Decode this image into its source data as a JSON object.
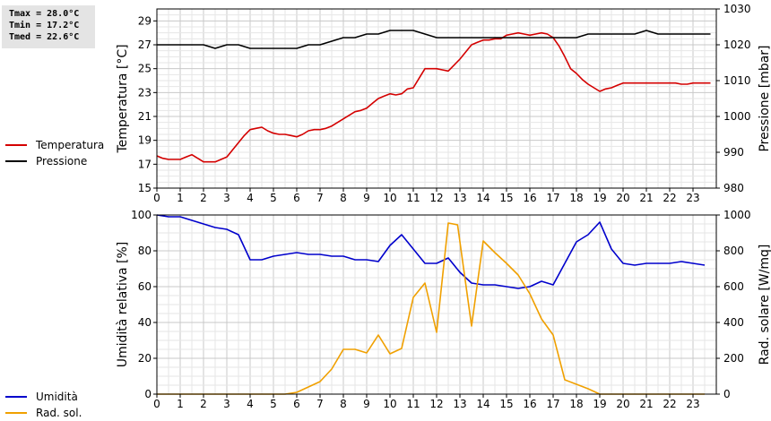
{
  "stats": [
    "Tmax = 28.0°C",
    "Tmin = 17.2°C",
    "Tmed = 22.6°C"
  ],
  "legend_top": [
    {
      "label": "Temperatura",
      "color": "#d40000"
    },
    {
      "label": "Pressione",
      "color": "#000000"
    }
  ],
  "legend_bottom": [
    {
      "label": "Umidità",
      "color": "#0000cc"
    },
    {
      "label": "Rad. sol.",
      "color": "#f0a000"
    }
  ],
  "chart_data": [
    {
      "type": "line",
      "x_ticks": [
        "0",
        "1",
        "2",
        "3",
        "4",
        "5",
        "6",
        "7",
        "8",
        "9",
        "10",
        "11",
        "12",
        "13",
        "14",
        "15",
        "16",
        "17",
        "18",
        "19",
        "20",
        "21",
        "22",
        "23"
      ],
      "xlim": [
        0,
        24
      ],
      "y_left": {
        "label": "Temperatura [°C]",
        "lim": [
          15,
          30
        ],
        "ticks": [
          "15",
          "17",
          "19",
          "21",
          "23",
          "25",
          "27",
          "29"
        ]
      },
      "y_right": {
        "label": "Pressione [mbar]",
        "lim": [
          980,
          1030
        ],
        "ticks": [
          "980",
          "990",
          "1000",
          "1010",
          "1020",
          "1030"
        ]
      },
      "grid": true,
      "series": [
        {
          "name": "Temperatura",
          "axis": "left",
          "color": "#d40000",
          "x": [
            0,
            0.25,
            0.5,
            0.75,
            1,
            1.25,
            1.5,
            1.75,
            2,
            2.25,
            2.5,
            2.75,
            3,
            3.25,
            3.5,
            3.75,
            4,
            4.25,
            4.5,
            4.75,
            5,
            5.25,
            5.5,
            5.75,
            6,
            6.25,
            6.5,
            6.75,
            7,
            7.25,
            7.5,
            7.75,
            8,
            8.25,
            8.5,
            8.75,
            9,
            9.25,
            9.5,
            9.75,
            10,
            10.25,
            10.5,
            10.75,
            11,
            11.25,
            11.5,
            11.75,
            12,
            12.25,
            12.5,
            12.75,
            13,
            13.25,
            13.5,
            13.75,
            14,
            14.25,
            14.5,
            14.75,
            15,
            15.25,
            15.5,
            15.75,
            16,
            16.25,
            16.5,
            16.75,
            17,
            17.25,
            17.5,
            17.75,
            18,
            18.25,
            18.5,
            18.75,
            19,
            19.25,
            19.5,
            19.75,
            20,
            20.25,
            20.5,
            20.75,
            21,
            21.25,
            21.5,
            21.75,
            22,
            22.25,
            22.5,
            22.75,
            23,
            23.25,
            23.5,
            23.75
          ],
          "y": [
            17.7,
            17.5,
            17.4,
            17.4,
            17.4,
            17.6,
            17.8,
            17.5,
            17.2,
            17.2,
            17.2,
            17.4,
            17.6,
            18.2,
            18.8,
            19.4,
            19.9,
            20.0,
            20.1,
            19.8,
            19.6,
            19.5,
            19.5,
            19.4,
            19.3,
            19.5,
            19.8,
            19.9,
            19.9,
            20.0,
            20.2,
            20.5,
            20.8,
            21.1,
            21.4,
            21.5,
            21.7,
            22.1,
            22.5,
            22.7,
            22.9,
            22.8,
            22.9,
            23.3,
            23.4,
            24.2,
            25.0,
            25.0,
            25.0,
            24.9,
            24.8,
            25.3,
            25.8,
            26.4,
            27.0,
            27.2,
            27.4,
            27.4,
            27.5,
            27.5,
            27.8,
            27.9,
            28.0,
            27.9,
            27.8,
            27.9,
            28.0,
            27.9,
            27.6,
            26.9,
            26.0,
            25.0,
            24.6,
            24.1,
            23.7,
            23.4,
            23.1,
            23.3,
            23.4,
            23.6,
            23.8,
            23.8,
            23.8,
            23.8,
            23.8,
            23.8,
            23.8,
            23.8,
            23.8,
            23.8,
            23.7,
            23.7,
            23.8,
            23.8,
            23.8,
            23.8
          ]
        },
        {
          "name": "Pressione",
          "axis": "right",
          "color": "#000000",
          "x": [
            0,
            1,
            2,
            2.5,
            3,
            3.5,
            4,
            5,
            6,
            6.5,
            7,
            7.5,
            8,
            8.5,
            9,
            9.5,
            10,
            10.5,
            11,
            11.5,
            12,
            13,
            14,
            15,
            16,
            17,
            18,
            18.5,
            19,
            20,
            20.5,
            21,
            21.5,
            22,
            23,
            23.75
          ],
          "y": [
            1020,
            1020,
            1020,
            1019,
            1020,
            1020,
            1019,
            1019,
            1019,
            1020,
            1020,
            1021,
            1022,
            1022,
            1023,
            1023,
            1024,
            1024,
            1024,
            1023,
            1022,
            1022,
            1022,
            1022,
            1022,
            1022,
            1022,
            1023,
            1023,
            1023,
            1023,
            1024,
            1023,
            1023,
            1023,
            1023
          ]
        }
      ]
    },
    {
      "type": "line",
      "x_ticks": [
        "0",
        "1",
        "2",
        "3",
        "4",
        "5",
        "6",
        "7",
        "8",
        "9",
        "10",
        "11",
        "12",
        "13",
        "14",
        "15",
        "16",
        "17",
        "18",
        "19",
        "20",
        "21",
        "22",
        "23"
      ],
      "xlim": [
        0,
        24
      ],
      "y_left": {
        "label": "Umidità relativa [%]",
        "lim": [
          0,
          100
        ],
        "ticks": [
          "0",
          "20",
          "40",
          "60",
          "80",
          "100"
        ]
      },
      "y_right": {
        "label": "Rad. solare [W/mq]",
        "lim": [
          0,
          1000
        ],
        "ticks": [
          "0",
          "200",
          "400",
          "600",
          "800",
          "1000"
        ]
      },
      "grid": true,
      "series": [
        {
          "name": "Umidità",
          "axis": "left",
          "color": "#0000cc",
          "x": [
            0,
            0.5,
            1,
            1.5,
            2,
            2.5,
            3,
            3.5,
            4,
            4.5,
            5,
            5.5,
            6,
            6.5,
            7,
            7.5,
            8,
            8.5,
            9,
            9.5,
            10,
            10.5,
            11,
            11.5,
            12,
            12.5,
            13,
            13.5,
            14,
            14.5,
            15,
            15.5,
            16,
            16.5,
            17,
            17.5,
            18,
            18.5,
            19,
            19.5,
            20,
            20.5,
            21,
            21.5,
            22,
            22.5,
            23,
            23.5
          ],
          "y": [
            100,
            99,
            99,
            97,
            95,
            93,
            92,
            89,
            75,
            75,
            77,
            78,
            79,
            78,
            78,
            77,
            77,
            75,
            75,
            74,
            83,
            89,
            81,
            73,
            73,
            76,
            68,
            62,
            61,
            61,
            60,
            59,
            60,
            63,
            61,
            73,
            85,
            89,
            96,
            81,
            73,
            72,
            73,
            73,
            73,
            74,
            73,
            72
          ]
        },
        {
          "name": "Rad. sol.",
          "axis": "right",
          "color": "#f0a000",
          "x": [
            0,
            1,
            2,
            3,
            4,
            5,
            5.5,
            6,
            6.5,
            7,
            7.5,
            8,
            8.5,
            9,
            9.5,
            10,
            10.5,
            11,
            11.5,
            12,
            12.5,
            12.9,
            13.5,
            14,
            14.5,
            15,
            15.5,
            16,
            16.5,
            17,
            17.5,
            18,
            18.5,
            19,
            20,
            21,
            22,
            23,
            23.5
          ],
          "y": [
            0,
            0,
            0,
            0,
            0,
            0,
            0,
            10,
            40,
            70,
            140,
            250,
            250,
            230,
            330,
            225,
            255,
            540,
            620,
            345,
            955,
            945,
            380,
            855,
            790,
            730,
            665,
            560,
            420,
            330,
            80,
            55,
            30,
            0,
            0,
            0,
            0,
            0,
            0
          ]
        }
      ]
    }
  ]
}
